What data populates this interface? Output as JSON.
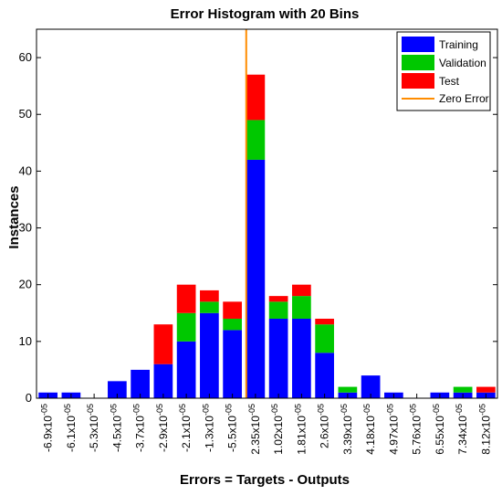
{
  "chart_data": {
    "type": "bar",
    "stacked": true,
    "title": "Error Histogram with 20 Bins",
    "xlabel": "Errors = Targets - Outputs",
    "ylabel": "Instances",
    "ylim": [
      0,
      65
    ],
    "yticks": [
      0,
      10,
      20,
      30,
      40,
      50,
      60
    ],
    "grid": false,
    "legend_position": "top-right",
    "categories": [
      "-6.9x10^-05",
      "-6.1x10^-05",
      "-5.3x10^-05",
      "-4.5x10^-05",
      "-3.7x10^-05",
      "-2.9x10^-05",
      "-2.1x10^-05",
      "-1.3x10^-05",
      "-5.5x10^-05",
      "2.35x10^-05",
      "1.02x10^-05",
      "1.81x10^-05",
      "2.6x10^-05",
      "3.39x10^-05",
      "4.18x10^-05",
      "4.97x10^-05",
      "5.76x10^-05",
      "6.55x10^-05",
      "7.34x10^-05",
      "8.12x10^-05"
    ],
    "category_parts": [
      [
        "-6.9",
        "-05"
      ],
      [
        "-6.1",
        "-05"
      ],
      [
        "-5.3",
        "-05"
      ],
      [
        "-4.5",
        "-05"
      ],
      [
        "-3.7",
        "-05"
      ],
      [
        "-2.9",
        "-05"
      ],
      [
        "-2.1",
        "-05"
      ],
      [
        "-1.3",
        "-05"
      ],
      [
        "-5.5",
        "-05"
      ],
      [
        "2.35",
        "-05"
      ],
      [
        "1.02",
        "-05"
      ],
      [
        "1.81",
        "-05"
      ],
      [
        "2.6",
        "-05"
      ],
      [
        "3.39",
        "-05"
      ],
      [
        "4.18",
        "-05"
      ],
      [
        "4.97",
        "-05"
      ],
      [
        "5.76",
        "-05"
      ],
      [
        "6.55",
        "-05"
      ],
      [
        "7.34",
        "-05"
      ],
      [
        "8.12",
        "-05"
      ]
    ],
    "series": [
      {
        "name": "Training",
        "color": "#0000ff",
        "values": [
          1,
          1,
          0,
          3,
          5,
          6,
          10,
          15,
          12,
          42,
          14,
          14,
          8,
          1,
          4,
          1,
          0,
          1,
          1,
          1
        ]
      },
      {
        "name": "Validation",
        "color": "#00c800",
        "values": [
          0,
          0,
          0,
          0,
          0,
          0,
          5,
          2,
          2,
          7,
          3,
          4,
          5,
          1,
          0,
          0,
          0,
          0,
          1,
          0
        ]
      },
      {
        "name": "Test",
        "color": "#ff0000",
        "values": [
          0,
          0,
          0,
          0,
          0,
          7,
          5,
          2,
          3,
          8,
          1,
          2,
          1,
          0,
          0,
          0,
          0,
          0,
          0,
          1
        ]
      }
    ],
    "zero_error": {
      "label": "Zero Error",
      "color": "#ff8c00",
      "category_index": 9
    }
  }
}
